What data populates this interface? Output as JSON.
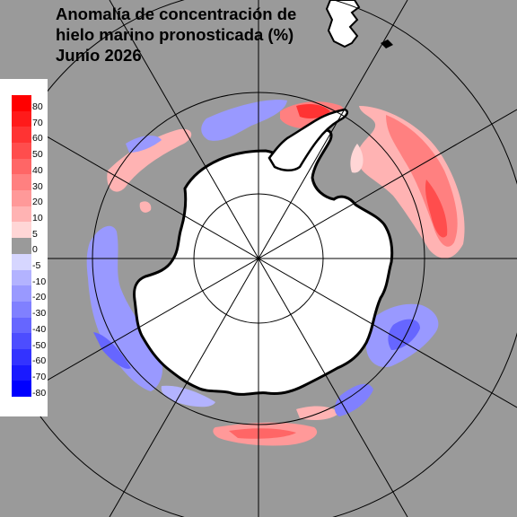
{
  "title": {
    "line1": "Anomalía de concentración de",
    "line2": "hielo marino pronosticada (%)",
    "line3": "Junio 2026"
  },
  "legend": {
    "labels": [
      "80",
      "70",
      "60",
      "50",
      "40",
      "30",
      "20",
      "10",
      "5",
      "0",
      "-5",
      "-10",
      "-20",
      "-30",
      "-40",
      "-50",
      "-60",
      "-70",
      "-80"
    ],
    "colors": [
      "#ff0000",
      "#ff1a1a",
      "#ff3333",
      "#ff4d4d",
      "#ff6666",
      "#ff8080",
      "#ff9999",
      "#ffb3b3",
      "#ffd6d6",
      "#9a9a9a",
      "#d6d6ff",
      "#b3b3ff",
      "#9999ff",
      "#8080ff",
      "#6666ff",
      "#4d4dff",
      "#3333ff",
      "#1a1aff",
      "#0000ff"
    ]
  },
  "map": {
    "projection": "south-polar-stereographic",
    "land_color": "#ffffff",
    "ocean_color": "#9a9a9a",
    "positive_anomaly_color": "#f08080",
    "negative_anomaly_color": "#7b7bf0"
  }
}
